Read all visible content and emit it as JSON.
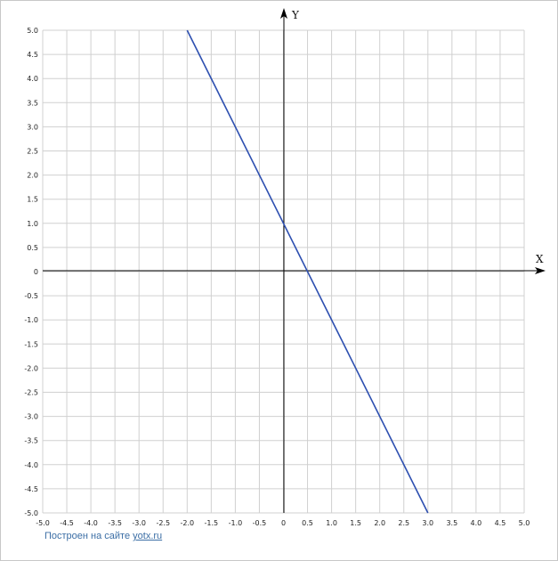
{
  "chart_data": {
    "type": "line",
    "xlabel": "X",
    "ylabel": "Y",
    "xlim": [
      -5,
      5
    ],
    "ylim": [
      -5,
      5
    ],
    "grid": true,
    "tick_step": 0.5,
    "x_ticks": [
      "-5.0",
      "-4.5",
      "-4.0",
      "-3.5",
      "-3.0",
      "-2.5",
      "-2.0",
      "-1.5",
      "-1.0",
      "-0.5",
      "0",
      "0.5",
      "1.0",
      "1.5",
      "2.0",
      "2.5",
      "3.0",
      "3.5",
      "4.0",
      "4.5",
      "5.0"
    ],
    "y_ticks": [
      "5.0",
      "4.5",
      "4.0",
      "3.5",
      "3.0",
      "2.5",
      "2.0",
      "1.5",
      "1.0",
      "0.5",
      "0",
      "-0.5",
      "-1.0",
      "-1.5",
      "-2.0",
      "-2.5",
      "-3.0",
      "-3.5",
      "-4.0",
      "-4.5",
      "-5.0"
    ],
    "series": [
      {
        "x": [
          -2,
          3
        ],
        "y": [
          5,
          -5
        ],
        "color": "#2d4fb0"
      }
    ]
  },
  "footer": {
    "credit_text": "Построен на сайте ",
    "credit_link": "yotx.ru"
  }
}
